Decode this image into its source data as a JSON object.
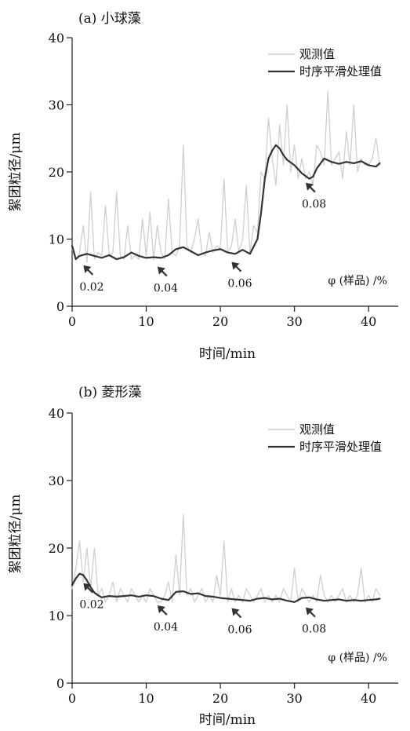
{
  "chart_data": [
    {
      "type": "line",
      "title": "(a) 小球藻",
      "xlabel": "时间/min",
      "ylabel": "絮团粒径/μm",
      "xlim": [
        0,
        44
      ],
      "ylim": [
        0,
        40
      ],
      "xticks": [
        0,
        10,
        20,
        30,
        40
      ],
      "yticks": [
        0,
        10,
        20,
        30,
        40
      ],
      "grid": false,
      "legend_position": "top-right",
      "note": "φ (样品) /%",
      "series": [
        {
          "name": "观测值",
          "color": "#cfcfcf",
          "x": [
            0,
            0.5,
            1,
            1.5,
            2,
            2.5,
            3,
            3.5,
            4,
            4.5,
            5,
            5.5,
            6,
            6.5,
            7,
            7.5,
            8,
            8.5,
            9,
            9.5,
            10,
            10.5,
            11,
            11.5,
            12,
            12.5,
            13,
            13.5,
            14,
            14.5,
            15,
            15.5,
            16,
            16.5,
            17,
            17.5,
            18,
            18.5,
            19,
            19.5,
            20,
            20.5,
            21,
            21.5,
            22,
            22.5,
            23,
            23.5,
            24,
            24.5,
            25,
            25.5,
            26,
            26.5,
            27,
            27.5,
            28,
            28.5,
            29,
            29.5,
            30,
            30.5,
            31,
            31.5,
            32,
            32.5,
            33,
            33.5,
            34,
            34.5,
            35,
            35.5,
            36,
            36.5,
            37,
            37.5,
            38,
            38.5,
            39,
            39.5,
            40,
            40.5,
            41,
            41.5
          ],
          "y": [
            8.5,
            7,
            8,
            12,
            6.5,
            17,
            7,
            8,
            7.5,
            15,
            7.5,
            8,
            17,
            7.5,
            7,
            12,
            7,
            7.5,
            7,
            13,
            7.5,
            14,
            7,
            12,
            8,
            7,
            16,
            8,
            7.5,
            9,
            24,
            9,
            8,
            10,
            13,
            8,
            7.5,
            11,
            8,
            9,
            8.5,
            19,
            8,
            9,
            13,
            8,
            10,
            18,
            8,
            12,
            11,
            20,
            19,
            28,
            22,
            18,
            27,
            21,
            30,
            20,
            24,
            19,
            22,
            19,
            20,
            18,
            24,
            23,
            21,
            32,
            21,
            22,
            23,
            19,
            26,
            21,
            30,
            20,
            22,
            21,
            21,
            22,
            25,
            21
          ]
        },
        {
          "name": "时序平滑处理值",
          "color": "#333333",
          "x": [
            0,
            0.5,
            1,
            2,
            3,
            4,
            5,
            6,
            7,
            8,
            9,
            10,
            11,
            12,
            13,
            14,
            15,
            16,
            17,
            18,
            19,
            20,
            21,
            22,
            23,
            24,
            25,
            25.5,
            26,
            26.5,
            27,
            27.5,
            28,
            28.5,
            29,
            30,
            31,
            32,
            32.5,
            33,
            34,
            35,
            36,
            37,
            38,
            39,
            40,
            41,
            41.5
          ],
          "y": [
            9,
            7,
            7.5,
            7.8,
            7.5,
            7.2,
            7.6,
            7,
            7.3,
            8,
            7.5,
            7.2,
            7.3,
            7.2,
            7.6,
            8.5,
            8.8,
            8.2,
            7.6,
            8,
            8.3,
            8.5,
            8,
            7.8,
            8.4,
            7.8,
            10,
            14,
            19,
            22,
            23.2,
            24,
            23.5,
            22.5,
            21.8,
            21,
            19.8,
            19,
            19.3,
            20.5,
            22,
            21.5,
            21.2,
            21.5,
            21.3,
            21.6,
            21,
            20.8,
            21.3
          ]
        }
      ],
      "annotations": [
        {
          "text": "0.02",
          "x": 1.2
        },
        {
          "text": "0.04",
          "x": 11.2
        },
        {
          "text": "0.06",
          "x": 21.2
        },
        {
          "text": "0.08",
          "x": 31.2
        }
      ]
    },
    {
      "type": "line",
      "title": "(b) 菱形藻",
      "xlabel": "时间/min",
      "ylabel": "絮团粒径/μm",
      "xlim": [
        0,
        44
      ],
      "ylim": [
        0,
        40
      ],
      "xticks": [
        0,
        10,
        20,
        30,
        40
      ],
      "yticks": [
        0,
        10,
        20,
        30,
        40
      ],
      "grid": false,
      "legend_position": "top-right",
      "note": "φ (样品) /%",
      "series": [
        {
          "name": "观测值",
          "color": "#cfcfcf",
          "x": [
            0,
            0.5,
            1,
            1.5,
            2,
            2.5,
            3,
            3.5,
            4,
            4.5,
            5,
            5.5,
            6,
            6.5,
            7,
            7.5,
            8,
            8.5,
            9,
            9.5,
            10,
            10.5,
            11,
            11.5,
            12,
            12.5,
            13,
            13.5,
            14,
            14.5,
            15,
            15.5,
            16,
            16.5,
            17,
            17.5,
            18,
            18.5,
            19,
            19.5,
            20,
            20.5,
            21,
            21.5,
            22,
            22.5,
            23,
            23.5,
            24,
            24.5,
            25,
            25.5,
            26,
            26.5,
            27,
            27.5,
            28,
            28.5,
            29,
            29.5,
            30,
            30.5,
            31,
            31.5,
            32,
            32.5,
            33,
            33.5,
            34,
            34.5,
            35,
            35.5,
            36,
            36.5,
            37,
            37.5,
            38,
            38.5,
            39,
            39.5,
            40,
            40.5,
            41,
            41.5
          ],
          "y": [
            14,
            17,
            21,
            15,
            20,
            14,
            20,
            13,
            14,
            12,
            13,
            15,
            12,
            14,
            13,
            12,
            14,
            13,
            12,
            13,
            12,
            14,
            13,
            12,
            12,
            13,
            15,
            12,
            19,
            13,
            25,
            13,
            14,
            12,
            13,
            14,
            12,
            13,
            12,
            16,
            13,
            21,
            12,
            14,
            12,
            13,
            12,
            14,
            13,
            12,
            13,
            14,
            12,
            13,
            12,
            13,
            12,
            14,
            13,
            12,
            17,
            12,
            14,
            13,
            12,
            13,
            12,
            16,
            13,
            12,
            13,
            12,
            13,
            14,
            12,
            13,
            12,
            13,
            17,
            12,
            13,
            12,
            14,
            13
          ]
        },
        {
          "name": "时序平滑处理值",
          "color": "#333333",
          "x": [
            0,
            0.5,
            1,
            1.5,
            2,
            2.5,
            3,
            3.5,
            4,
            5,
            6,
            7,
            8,
            9,
            10,
            11,
            12,
            13,
            14,
            15,
            16,
            17,
            18,
            19,
            20,
            21,
            22,
            23,
            24,
            25,
            26,
            27,
            28,
            29,
            30,
            31,
            32,
            33,
            34,
            35,
            36,
            37,
            38,
            39,
            40,
            41,
            41.5
          ],
          "y": [
            14.5,
            15.5,
            16.2,
            16,
            15.2,
            14.2,
            13.4,
            13,
            12.7,
            12.9,
            12.8,
            12.9,
            13,
            12.8,
            13,
            12.9,
            12.5,
            12.3,
            13.5,
            13.6,
            13.2,
            13.3,
            12.9,
            12.8,
            12.6,
            12.5,
            12.4,
            12.3,
            12.2,
            12.5,
            12.6,
            12.4,
            12.5,
            12.2,
            12,
            12.6,
            12.7,
            12.4,
            12.2,
            12.3,
            12.4,
            12.2,
            12.3,
            12.2,
            12.3,
            12.4,
            12.5
          ]
        }
      ],
      "annotations": [
        {
          "text": "0.02",
          "x": 1.2
        },
        {
          "text": "0.04",
          "x": 11.2
        },
        {
          "text": "0.06",
          "x": 21.2
        },
        {
          "text": "0.08",
          "x": 31.2
        }
      ]
    }
  ]
}
